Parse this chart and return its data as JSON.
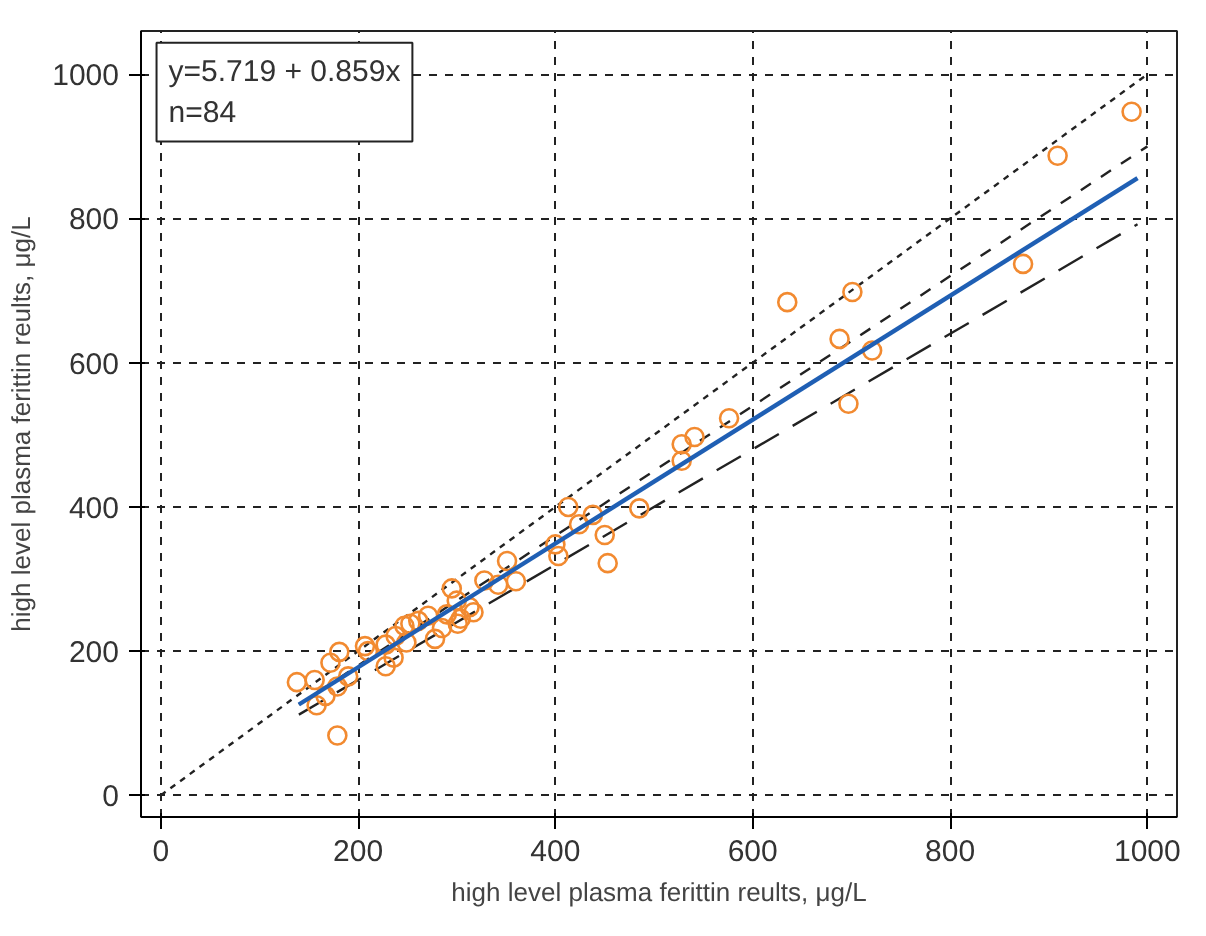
{
  "chart_data": {
    "type": "scatter",
    "xlabel": "high level plasma ferittin reults, μg/L",
    "ylabel": "high level plasma ferittin reults, μg/L",
    "annotations": [
      "y=5.719 + 0.859x",
      "n=84"
    ],
    "xlim": [
      -20,
      1030
    ],
    "ylim": [
      -30,
      1060
    ],
    "xticks": [
      0,
      200,
      400,
      600,
      800,
      1000
    ],
    "yticks": [
      0,
      200,
      400,
      600,
      800,
      1000
    ],
    "grid": true,
    "series": [
      {
        "type": "line",
        "color": "#222222",
        "line_style": "dotted",
        "x": [
          0,
          1000
        ],
        "values": [
          0,
          1000
        ]
      },
      {
        "type": "line",
        "color": "#222222",
        "line_style": "dashed",
        "x": [
          140,
          1000
        ],
        "values": [
          126,
          900
        ]
      },
      {
        "type": "line",
        "color": "#222222",
        "line_style": "longdash",
        "x": [
          140,
          990
        ],
        "values": [
          112,
          792
        ]
      },
      {
        "marker": "circle",
        "color": "#f28a30",
        "x": [
          138,
          156,
          158,
          172,
          181,
          167,
          179,
          179,
          190,
          207,
          210,
          228,
          228,
          236,
          238,
          247,
          249,
          253,
          261,
          271,
          278,
          285,
          290,
          295,
          300,
          301,
          304,
          313,
          317,
          328,
          342,
          351,
          360,
          400,
          403,
          413,
          424,
          438,
          450,
          453,
          485,
          528,
          528,
          541,
          576,
          635,
          688,
          697,
          701,
          721,
          874,
          909,
          984
        ],
        "values": [
          157,
          160,
          125,
          184,
          199,
          138,
          151,
          83,
          165,
          207,
          200,
          209,
          179,
          191,
          221,
          235,
          212,
          238,
          242,
          249,
          217,
          232,
          251,
          287,
          270,
          238,
          245,
          261,
          254,
          298,
          292,
          325,
          297,
          348,
          332,
          400,
          376,
          389,
          361,
          322,
          398,
          487,
          464,
          497,
          523,
          684,
          633,
          543,
          698,
          617,
          737,
          887,
          948
        ]
      },
      {
        "type": "line",
        "color": "#1f5fb4",
        "line_style": "solid",
        "x": [
          140,
          990
        ],
        "values": [
          126,
          856
        ]
      }
    ]
  }
}
